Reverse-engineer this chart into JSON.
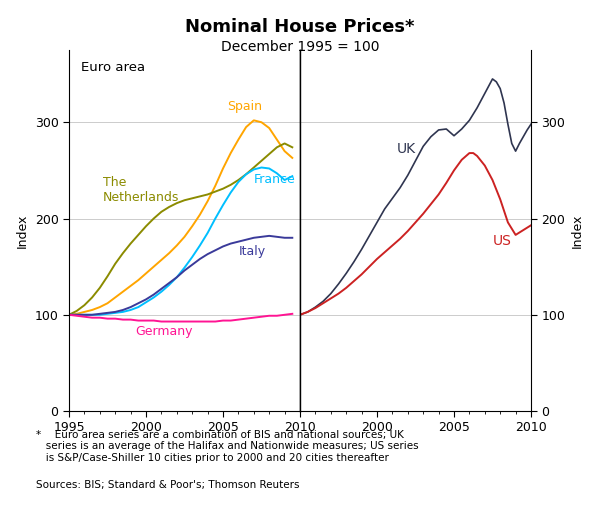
{
  "title": "Nominal House Prices*",
  "subtitle": "December 1995 = 100",
  "ylabel_left": "Index",
  "ylabel_right": "Index",
  "footnote_star": "*  Euro area series are a combination of BIS and national sources; UK\n   series is an average of the Halifax and Nationwide measures; US series\n   is S&P/Case-Shiller 10 cities prior to 2000 and 20 cities thereafter",
  "footnote_sources": "Sources: BIS; Standard & Poor's; Thomson Reuters",
  "euro_area_label": "Euro area",
  "ylim": [
    0,
    375
  ],
  "yticks": [
    0,
    100,
    200,
    300
  ],
  "colors": {
    "spain": "#FFA500",
    "netherlands": "#8B8B00",
    "france": "#00BFFF",
    "italy": "#3A3A9A",
    "germany": "#FF1493",
    "uk": "#2F3550",
    "us": "#CC2222"
  },
  "spain": {
    "x": [
      1995.0,
      1995.5,
      1996.0,
      1996.5,
      1997.0,
      1997.5,
      1998.0,
      1998.5,
      1999.0,
      1999.5,
      2000.0,
      2000.5,
      2001.0,
      2001.5,
      2002.0,
      2002.5,
      2003.0,
      2003.5,
      2004.0,
      2004.5,
      2005.0,
      2005.5,
      2006.0,
      2006.5,
      2007.0,
      2007.5,
      2008.0,
      2008.5,
      2009.0,
      2009.5
    ],
    "y": [
      100,
      101,
      103,
      105,
      108,
      112,
      118,
      124,
      130,
      136,
      143,
      150,
      157,
      164,
      172,
      181,
      192,
      204,
      218,
      234,
      252,
      268,
      282,
      295,
      302,
      300,
      294,
      282,
      270,
      263
    ]
  },
  "netherlands": {
    "x": [
      1995.0,
      1995.5,
      1996.0,
      1996.5,
      1997.0,
      1997.5,
      1998.0,
      1998.5,
      1999.0,
      1999.5,
      2000.0,
      2000.5,
      2001.0,
      2001.5,
      2002.0,
      2002.5,
      2003.0,
      2003.5,
      2004.0,
      2004.5,
      2005.0,
      2005.5,
      2006.0,
      2006.5,
      2007.0,
      2007.5,
      2008.0,
      2008.5,
      2009.0,
      2009.5
    ],
    "y": [
      100,
      104,
      110,
      118,
      128,
      140,
      153,
      164,
      174,
      183,
      192,
      200,
      207,
      212,
      216,
      219,
      221,
      223,
      225,
      228,
      231,
      235,
      240,
      246,
      253,
      260,
      267,
      274,
      278,
      274
    ]
  },
  "france": {
    "x": [
      1995.0,
      1995.5,
      1996.0,
      1996.5,
      1997.0,
      1997.5,
      1998.0,
      1998.5,
      1999.0,
      1999.5,
      2000.0,
      2000.5,
      2001.0,
      2001.5,
      2002.0,
      2002.5,
      2003.0,
      2003.5,
      2004.0,
      2004.5,
      2005.0,
      2005.5,
      2006.0,
      2006.5,
      2007.0,
      2007.5,
      2008.0,
      2008.5,
      2009.0,
      2009.5
    ],
    "y": [
      100,
      100,
      100,
      100,
      100,
      101,
      102,
      103,
      105,
      108,
      113,
      118,
      124,
      131,
      139,
      149,
      160,
      172,
      185,
      200,
      214,
      227,
      238,
      246,
      251,
      253,
      252,
      247,
      240,
      244
    ]
  },
  "italy": {
    "x": [
      1995.0,
      1995.5,
      1996.0,
      1996.5,
      1997.0,
      1997.5,
      1998.0,
      1998.5,
      1999.0,
      1999.5,
      2000.0,
      2000.5,
      2001.0,
      2001.5,
      2002.0,
      2002.5,
      2003.0,
      2003.5,
      2004.0,
      2004.5,
      2005.0,
      2005.5,
      2006.0,
      2006.5,
      2007.0,
      2007.5,
      2008.0,
      2008.5,
      2009.0,
      2009.5
    ],
    "y": [
      100,
      100,
      100,
      100,
      101,
      102,
      103,
      105,
      108,
      112,
      116,
      121,
      127,
      133,
      139,
      146,
      152,
      158,
      163,
      167,
      171,
      174,
      176,
      178,
      180,
      181,
      182,
      181,
      180,
      180
    ]
  },
  "germany": {
    "x": [
      1995.0,
      1995.5,
      1996.0,
      1996.5,
      1997.0,
      1997.5,
      1998.0,
      1998.5,
      1999.0,
      1999.5,
      2000.0,
      2000.5,
      2001.0,
      2001.5,
      2002.0,
      2002.5,
      2003.0,
      2003.5,
      2004.0,
      2004.5,
      2005.0,
      2005.5,
      2006.0,
      2006.5,
      2007.0,
      2007.5,
      2008.0,
      2008.5,
      2009.0,
      2009.5
    ],
    "y": [
      100,
      99,
      98,
      97,
      97,
      96,
      96,
      95,
      95,
      94,
      94,
      94,
      93,
      93,
      93,
      93,
      93,
      93,
      93,
      93,
      94,
      94,
      95,
      96,
      97,
      98,
      99,
      99,
      100,
      101
    ]
  },
  "uk": {
    "x": [
      1995.0,
      1995.5,
      1996.0,
      1996.5,
      1997.0,
      1997.5,
      1998.0,
      1998.5,
      1999.0,
      1999.5,
      2000.0,
      2000.5,
      2001.0,
      2001.5,
      2002.0,
      2002.5,
      2003.0,
      2003.5,
      2004.0,
      2004.5,
      2005.0,
      2005.5,
      2006.0,
      2006.5,
      2007.0,
      2007.5,
      2007.75,
      2008.0,
      2008.25,
      2008.5,
      2008.75,
      2009.0,
      2009.25,
      2009.5,
      2009.75,
      2010.0
    ],
    "y": [
      100,
      103,
      108,
      114,
      122,
      132,
      143,
      155,
      168,
      182,
      196,
      210,
      221,
      232,
      245,
      260,
      275,
      285,
      292,
      293,
      286,
      293,
      302,
      315,
      330,
      345,
      342,
      335,
      320,
      298,
      278,
      270,
      278,
      285,
      292,
      298
    ]
  },
  "us": {
    "x": [
      1995.0,
      1995.5,
      1996.0,
      1996.5,
      1997.0,
      1997.5,
      1998.0,
      1998.5,
      1999.0,
      1999.5,
      2000.0,
      2000.5,
      2001.0,
      2001.5,
      2002.0,
      2002.5,
      2003.0,
      2003.5,
      2004.0,
      2004.5,
      2005.0,
      2005.5,
      2006.0,
      2006.25,
      2006.5,
      2007.0,
      2007.5,
      2008.0,
      2008.5,
      2009.0,
      2009.5,
      2010.0
    ],
    "y": [
      100,
      103,
      107,
      112,
      117,
      122,
      128,
      135,
      142,
      150,
      158,
      165,
      172,
      179,
      187,
      196,
      205,
      215,
      225,
      237,
      250,
      261,
      268,
      268,
      265,
      255,
      240,
      220,
      196,
      183,
      188,
      193
    ]
  },
  "left_xticks": [
    1995,
    2000,
    2005,
    2010
  ],
  "right_xticks": [
    2000,
    2005,
    2010
  ]
}
